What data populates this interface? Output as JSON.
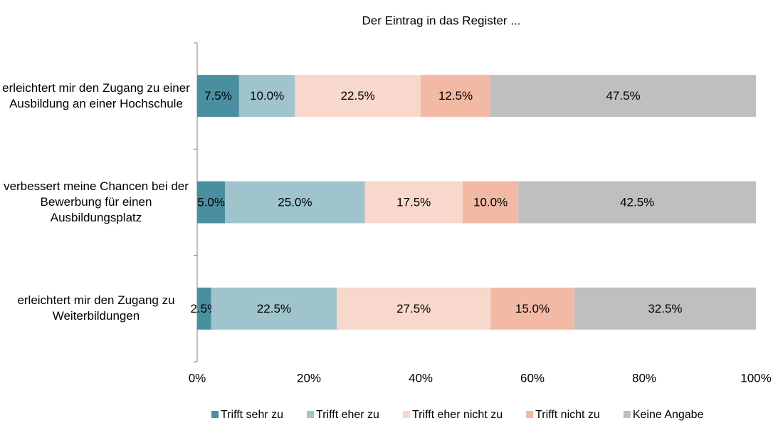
{
  "chart_data": {
    "type": "stacked_barh",
    "title": "Der Eintrag in das Register ...",
    "categories": [
      "erleichtert mir den Zugang zu einer Ausbildung an einer Hochschule",
      "verbessert meine Chancen bei der Bewerbung für einen Ausbildungsplatz",
      "erleichtert mir den Zugang zu Weiterbildungen"
    ],
    "series": [
      {
        "name": "Trifft sehr zu",
        "color": "#4a8fa0",
        "values": [
          7.5,
          5.0,
          2.5
        ],
        "value_labels": [
          "7.5%",
          "5.0%",
          "2.5%"
        ]
      },
      {
        "name": "Trifft eher zu",
        "color": "#9fc4cc",
        "values": [
          10.0,
          25.0,
          22.5
        ],
        "value_labels": [
          "10.0%",
          "25.0%",
          "22.5%"
        ]
      },
      {
        "name": "Trifft eher nicht zu",
        "color": "#f8d8cc",
        "values": [
          22.5,
          17.5,
          27.5
        ],
        "value_labels": [
          "22.5%",
          "17.5%",
          "27.5%"
        ]
      },
      {
        "name": "Trifft nicht zu",
        "color": "#f2b9a5",
        "values": [
          12.5,
          10.0,
          15.0
        ],
        "value_labels": [
          "12.5%",
          "10.0%",
          "15.0%"
        ]
      },
      {
        "name": "Keine Angabe",
        "color": "#bfbfbf",
        "values": [
          47.5,
          42.5,
          32.5
        ],
        "value_labels": [
          "47.5%",
          "42.5%",
          "32.5%"
        ]
      }
    ],
    "xlim": [
      0,
      100
    ],
    "xticks": [
      {
        "value": 0,
        "label": "0%"
      },
      {
        "value": 20,
        "label": "20%"
      },
      {
        "value": 40,
        "label": "40%"
      },
      {
        "value": 60,
        "label": "60%"
      },
      {
        "value": 80,
        "label": "80%"
      },
      {
        "value": 100,
        "label": "100%"
      }
    ],
    "legend": "bottom"
  }
}
